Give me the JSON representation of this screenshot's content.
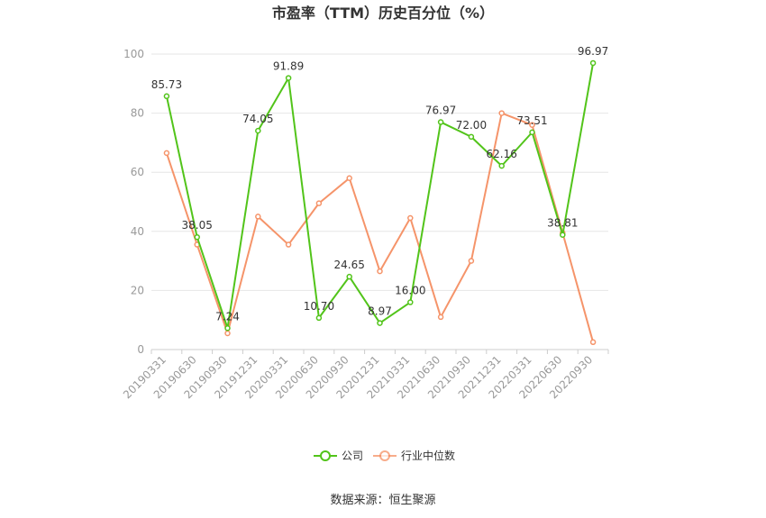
{
  "chart_data": {
    "type": "line",
    "title": "市盈率（TTM）历史百分位（%）",
    "source": "数据来源：恒生聚源",
    "ylim": [
      0,
      100
    ],
    "yticks": [
      0,
      20,
      40,
      60,
      80,
      100
    ],
    "grid": true,
    "legend_position": "bottom",
    "categories": [
      "20190331",
      "20190630",
      "20190930",
      "20191231",
      "20200331",
      "20200630",
      "20200930",
      "20201231",
      "20210331",
      "20210630",
      "20210930",
      "20211231",
      "20220331",
      "20220630",
      "20220930"
    ],
    "series": [
      {
        "name": "公司",
        "color": "#52c41a",
        "labels": [
          "85.73",
          "38.05",
          "7.24",
          "74.05",
          "91.89",
          "10.70",
          "24.65",
          "8.97",
          "16.00",
          "76.97",
          "72.00",
          "62.16",
          "73.51",
          "38.81",
          "96.97"
        ],
        "values": [
          85.73,
          38.05,
          7.24,
          74.05,
          91.89,
          10.7,
          24.65,
          8.97,
          16.0,
          76.97,
          72.0,
          62.16,
          73.51,
          38.81,
          96.97
        ]
      },
      {
        "name": "行业中位数",
        "color": "#f5895a",
        "values": [
          66.5,
          35.5,
          5.5,
          45.0,
          35.5,
          49.5,
          58.0,
          26.5,
          44.5,
          11.0,
          30.0,
          80.0,
          76.0,
          39.5,
          2.5
        ]
      }
    ]
  }
}
